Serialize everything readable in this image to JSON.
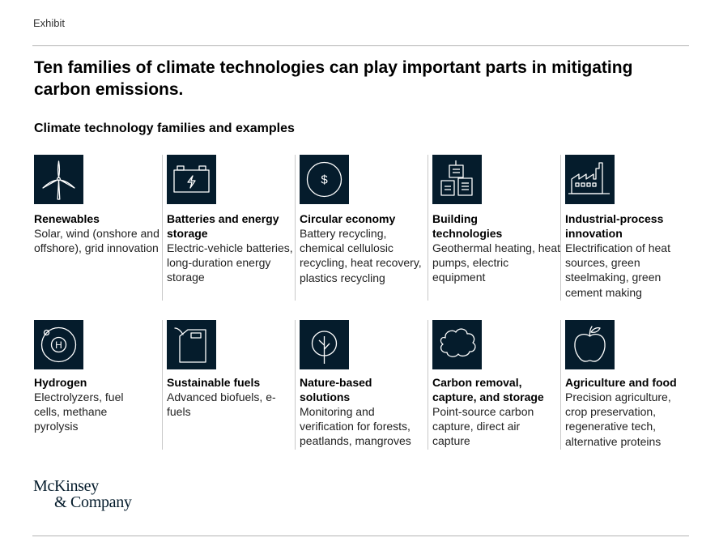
{
  "exhibit_label": "Exhibit",
  "headline": "Ten families of climate technologies can play important parts in mitigating carbon emissions.",
  "subhead": "Climate technology families and examples",
  "colors": {
    "icon_background": "#051c2c",
    "icon_stroke": "#ffffff",
    "divider": "#c8c8c8"
  },
  "families": [
    {
      "icon": "wind-turbine-icon",
      "title": "Renewables",
      "examples": "Solar, wind (onshore and offshore), grid innovation"
    },
    {
      "icon": "battery-icon",
      "title": "Batteries and energy storage",
      "examples": "Electric-vehicle batteries, long-duration energy storage"
    },
    {
      "icon": "dollar-coin-icon",
      "title": "Circular economy",
      "examples": "Battery recycling, chemical cellulosic recycling, heat recovery, plastics recycling"
    },
    {
      "icon": "buildings-icon",
      "title": "Building technologies",
      "examples": "Geothermal heating, heat pumps, electric equipment"
    },
    {
      "icon": "factory-icon",
      "title": "Industrial-process innovation",
      "examples": "Electrification of heat sources, green steelmaking, green cement making"
    },
    {
      "icon": "hydrogen-atom-icon",
      "title": "Hydrogen",
      "examples": "Electrolyzers, fuel cells, methane pyrolysis"
    },
    {
      "icon": "fuel-canister-icon",
      "title": "Sustainable fuels",
      "examples": "Advanced biofuels, e-fuels"
    },
    {
      "icon": "tree-icon",
      "title": "Nature-based solutions",
      "examples": "Monitoring and verification for forests, peatlands, mangroves"
    },
    {
      "icon": "cloud-icon",
      "title": "Carbon removal, capture, and storage",
      "examples": "Point-source carbon capture, direct air capture"
    },
    {
      "icon": "apple-icon",
      "title": "Agriculture and food",
      "examples": "Precision agriculture, crop preservation, regenerative tech, alternative proteins"
    }
  ],
  "logo": {
    "line1": "McKinsey",
    "line2": "& Company"
  }
}
